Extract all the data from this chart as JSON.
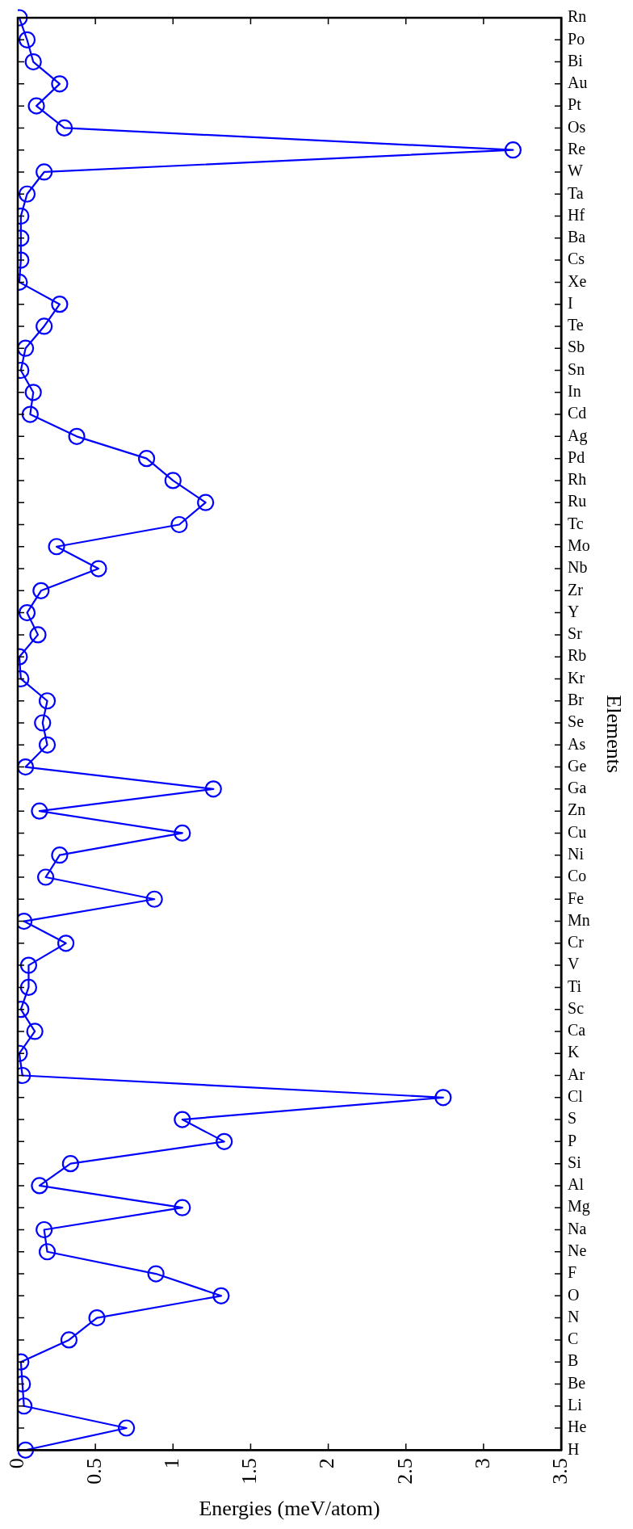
{
  "chart_data": {
    "type": "line",
    "orientation": "horizontal",
    "xlabel": "Energies (meV/atom)",
    "ylabel": "Elements",
    "categories": [
      "Rn",
      "Po",
      "Bi",
      "Au",
      "Pt",
      "Os",
      "Re",
      "W",
      "Ta",
      "Hf",
      "Ba",
      "Cs",
      "Xe",
      "I",
      "Te",
      "Sb",
      "Sn",
      "In",
      "Cd",
      "Ag",
      "Pd",
      "Rh",
      "Ru",
      "Tc",
      "Mo",
      "Nb",
      "Zr",
      "Y",
      "Sr",
      "Rb",
      "Kr",
      "Br",
      "Se",
      "As",
      "Ge",
      "Ga",
      "Zn",
      "Cu",
      "Ni",
      "Co",
      "Fe",
      "Mn",
      "Cr",
      "V",
      "Ti",
      "Sc",
      "Ca",
      "K",
      "Ar",
      "Cl",
      "S",
      "P",
      "Si",
      "Al",
      "Mg",
      "Na",
      "Ne",
      "F",
      "O",
      "N",
      "C",
      "B",
      "Be",
      "Li",
      "He",
      "H"
    ],
    "series": [
      {
        "color": "#0000ff",
        "values": [
          0.01,
          0.06,
          0.1,
          0.27,
          0.12,
          0.3,
          3.19,
          0.17,
          0.06,
          0.02,
          0.02,
          0.02,
          0.01,
          0.27,
          0.17,
          0.05,
          0.02,
          0.1,
          0.08,
          0.38,
          0.83,
          1.0,
          1.21,
          1.04,
          0.25,
          0.52,
          0.15,
          0.06,
          0.13,
          0.01,
          0.02,
          0.19,
          0.16,
          0.19,
          0.05,
          1.26,
          0.14,
          1.06,
          0.27,
          0.18,
          0.88,
          0.04,
          0.31,
          0.07,
          0.07,
          0.02,
          0.11,
          0.01,
          0.03,
          2.74,
          1.06,
          1.33,
          0.34,
          0.14,
          1.06,
          0.17,
          0.19,
          0.89,
          1.31,
          0.51,
          0.33,
          0.02,
          0.03,
          0.04,
          0.7,
          0.05
        ]
      }
    ],
    "marker": "circle",
    "line_style": "solid",
    "grid": false,
    "xlim": [
      0,
      3.5
    ],
    "xticks": [
      0,
      0.5,
      1,
      1.5,
      2,
      2.5,
      3,
      3.5
    ]
  }
}
